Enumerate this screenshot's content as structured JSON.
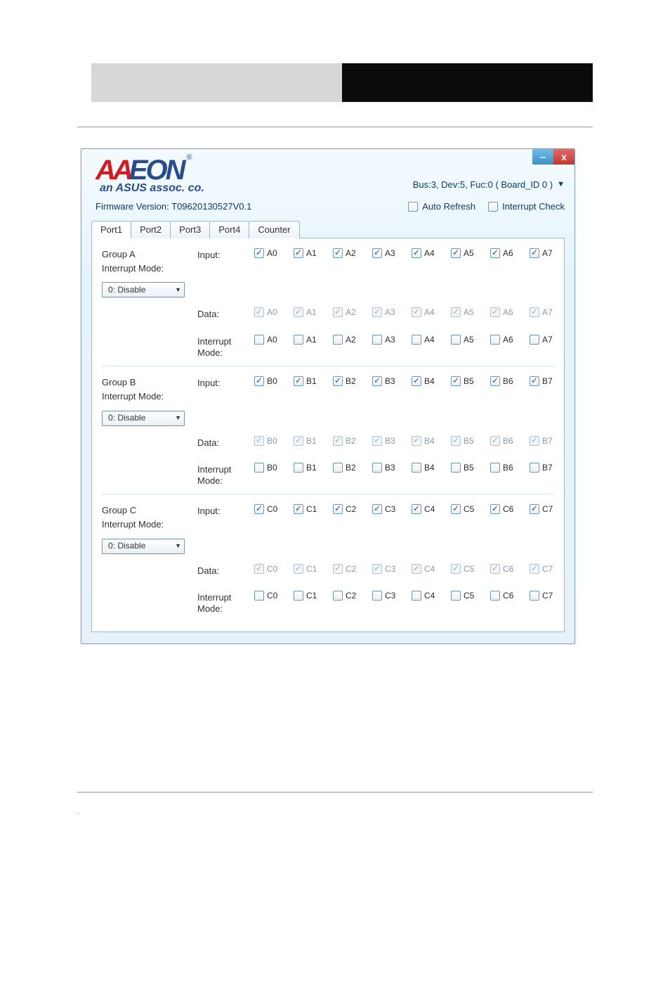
{
  "colors": {
    "brand_red": "#d71920",
    "brand_blue": "#2a4b8d",
    "text_blue": "#0b3a73",
    "window_border": "#7aa4c7",
    "tab_border": "#9fb7cc",
    "group_divider": "#d8e2ea"
  },
  "logo": {
    "prefix": "AA",
    "suffix": "EON",
    "registered": "®",
    "subtitle": "an ASUS assoc. co."
  },
  "chrome": {
    "minimize_glyph": "–",
    "close_glyph": "x"
  },
  "board_selector": {
    "text": "Bus:3, Dev:5, Fuc:0  ( Board_ID 0 )",
    "arrow": "▼"
  },
  "firmware": "Firmware Version: T09620130527V0.1",
  "options": {
    "auto_refresh": {
      "label": "Auto Refresh",
      "checked": false
    },
    "interrupt_check": {
      "label": "Interrupt Check",
      "checked": false
    }
  },
  "tabs": [
    "Port1",
    "Port2",
    "Port3",
    "Port4",
    "Counter"
  ],
  "active_tab": 0,
  "interrupt_mode_label": "Interrupt Mode:",
  "combo_option": "0: Disable",
  "row_labels": {
    "input": "Input:",
    "data": "Data:",
    "interrupt_mode": "Interrupt\nMode:"
  },
  "groups": [
    {
      "name": "Group A",
      "prefix": "A",
      "input": {
        "enabled": true,
        "checked": [
          true,
          true,
          true,
          true,
          true,
          true,
          true,
          true
        ]
      },
      "data": {
        "enabled": false,
        "checked": [
          true,
          true,
          true,
          true,
          true,
          true,
          true,
          true
        ]
      },
      "interrupt": {
        "enabled": true,
        "checked": [
          false,
          false,
          false,
          false,
          false,
          false,
          false,
          false
        ]
      }
    },
    {
      "name": "Group B",
      "prefix": "B",
      "input": {
        "enabled": true,
        "checked": [
          true,
          true,
          true,
          true,
          true,
          true,
          true,
          true
        ]
      },
      "data": {
        "enabled": false,
        "checked": [
          true,
          true,
          true,
          true,
          true,
          true,
          true,
          true
        ]
      },
      "interrupt": {
        "enabled": true,
        "checked": [
          false,
          false,
          false,
          false,
          false,
          false,
          false,
          false
        ]
      }
    },
    {
      "name": "Group C",
      "prefix": "C",
      "input": {
        "enabled": true,
        "checked": [
          true,
          true,
          true,
          true,
          true,
          true,
          true,
          true
        ]
      },
      "data": {
        "enabled": false,
        "checked": [
          true,
          true,
          true,
          true,
          true,
          true,
          true,
          true
        ]
      },
      "interrupt": {
        "enabled": true,
        "checked": [
          false,
          false,
          false,
          false,
          false,
          false,
          false,
          false
        ]
      }
    }
  ]
}
